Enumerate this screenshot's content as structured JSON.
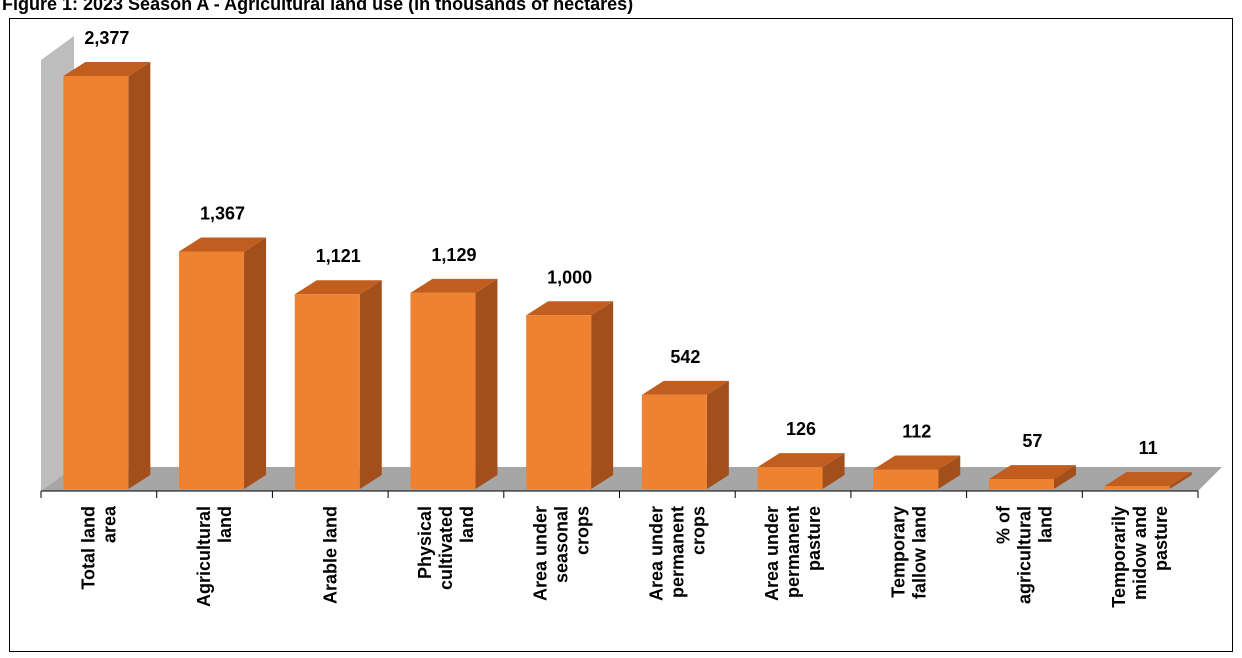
{
  "title": "Figure 1: 2023 Season A - Agricultural land use (in thousands of hectares)",
  "colors": {
    "front": "#ee8230",
    "top": "#c15e1f",
    "side": "#a24f1b",
    "floor": "#a6a6a6",
    "wall": "#bdbdbd"
  },
  "chart_data": {
    "type": "bar",
    "title": "Figure 1: 2023 Season A - Agricultural land use (in thousands of hectares)",
    "categories": [
      [
        "Total land",
        "area"
      ],
      [
        "Agricultural",
        "land"
      ],
      [
        "Arable land"
      ],
      [
        "Physical",
        "cultivated",
        "land"
      ],
      [
        "Area under",
        "seasonal",
        "crops"
      ],
      [
        "Area under",
        "permanent",
        "crops"
      ],
      [
        "Area under",
        "permanent",
        "pasture"
      ],
      [
        "Temporary",
        "fallow land"
      ],
      [
        "% of",
        "agricultural",
        "land"
      ],
      [
        "Temporarily",
        "midow and",
        "pasture"
      ]
    ],
    "values": [
      2377,
      1367,
      1121,
      1129,
      1000,
      542,
      126,
      112,
      57,
      11
    ],
    "value_labels": [
      "2,377",
      "1,367",
      "1,121",
      "1,129",
      "1,000",
      "542",
      "126",
      "112",
      "57",
      "11"
    ],
    "ylim": [
      0,
      2377
    ],
    "grid": false,
    "legend": "none"
  }
}
